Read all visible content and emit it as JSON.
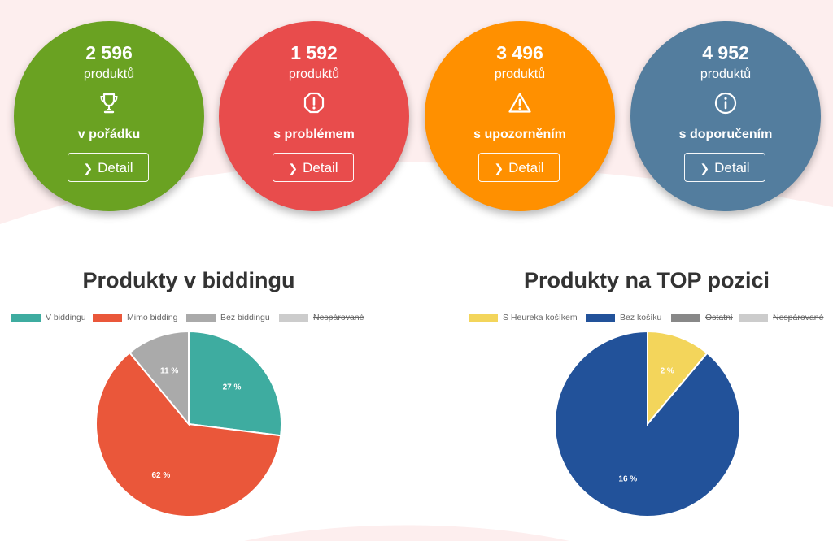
{
  "colors": {
    "green": "#6aa222",
    "red": "#e84c4c",
    "orange": "#ff9000",
    "blue": "#537d9e",
    "bg_pink": "#fdeeee"
  },
  "cards": [
    {
      "count": "2 596",
      "unit": "produktů",
      "icon": "trophy-icon",
      "status": "v pořádku",
      "detail": "Detail"
    },
    {
      "count": "1 592",
      "unit": "produktů",
      "icon": "alert-octagon-icon",
      "status": "s problémem",
      "detail": "Detail"
    },
    {
      "count": "3 496",
      "unit": "produktů",
      "icon": "warning-triangle-icon",
      "status": "s upozorněním",
      "detail": "Detail"
    },
    {
      "count": "4 952",
      "unit": "produktů",
      "icon": "info-circle-icon",
      "status": "s doporučením",
      "detail": "Detail"
    }
  ],
  "chart_data": [
    {
      "type": "pie",
      "title": "Produkty v biddingu",
      "legend_position": "top",
      "series": [
        {
          "name": "V biddingu",
          "value": 27,
          "label": "27 %",
          "color": "#3eaca0",
          "hidden": false
        },
        {
          "name": "Mimo bidding",
          "value": 62,
          "label": "62 %",
          "color": "#ea573a",
          "hidden": false
        },
        {
          "name": "Bez biddingu",
          "value": 11,
          "label": "11 %",
          "color": "#aaaaaa",
          "hidden": false
        },
        {
          "name": "Nespárované",
          "value": 0,
          "label": "",
          "color": "#cccccc",
          "hidden": true
        }
      ]
    },
    {
      "type": "pie",
      "title": "Produkty na TOP pozici",
      "legend_position": "top",
      "series": [
        {
          "name": "S Heureka košíkem",
          "value": 2,
          "label": "2 %",
          "color": "#f3d55b",
          "hidden": false
        },
        {
          "name": "Bez košíku",
          "value": 16,
          "label": "16 %",
          "color": "#22529a",
          "hidden": false
        },
        {
          "name": "Ostatní",
          "value": 0,
          "label": "",
          "color": "#888888",
          "hidden": true
        },
        {
          "name": "Nespárované",
          "value": 0,
          "label": "",
          "color": "#cccccc",
          "hidden": true
        }
      ]
    }
  ]
}
